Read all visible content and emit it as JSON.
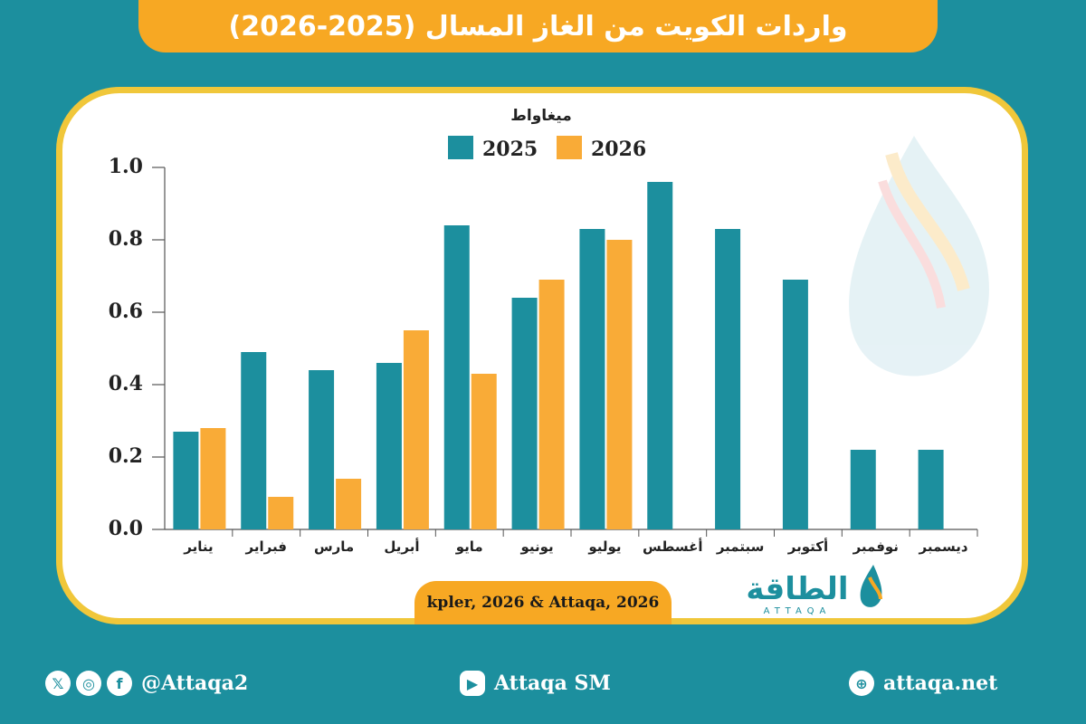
{
  "title": "واردات الكويت من الغاز المسال (2025-2026)",
  "source": "kpler, 2026 & Attaqa, 2026",
  "brand": {
    "name_ar": "الطاقة",
    "name_en": "ATTAQA"
  },
  "footer": {
    "social_handle": "@Attaqa2",
    "youtube": "Attaqa SM",
    "website": "attaqa.net"
  },
  "colors": {
    "series_2025": "#1c8f9e",
    "series_2026": "#f9ab37",
    "accent": "#f7a823",
    "background": "#1c8f9e"
  },
  "chart_data": {
    "type": "bar",
    "title": "",
    "ylabel": "ميغاواط",
    "xlabel": "",
    "ylim": [
      0,
      1.0
    ],
    "yticks": [
      "0.0",
      "0.2",
      "0.4",
      "0.6",
      "0.8",
      "1.0"
    ],
    "legend_position": "top",
    "categories": [
      "يناير",
      "فبراير",
      "مارس",
      "أبريل",
      "مايو",
      "يونيو",
      "يوليو",
      "أغسطس",
      "سبتمبر",
      "أكتوبر",
      "نوفمبر",
      "ديسمبر"
    ],
    "series": [
      {
        "name": "2025",
        "values": [
          0.27,
          0.49,
          0.44,
          0.46,
          0.84,
          0.64,
          0.83,
          0.96,
          0.83,
          0.69,
          0.22,
          0.22
        ]
      },
      {
        "name": "2026",
        "values": [
          0.28,
          0.09,
          0.14,
          0.55,
          0.43,
          0.69,
          0.8,
          null,
          null,
          null,
          null,
          null
        ]
      }
    ]
  }
}
